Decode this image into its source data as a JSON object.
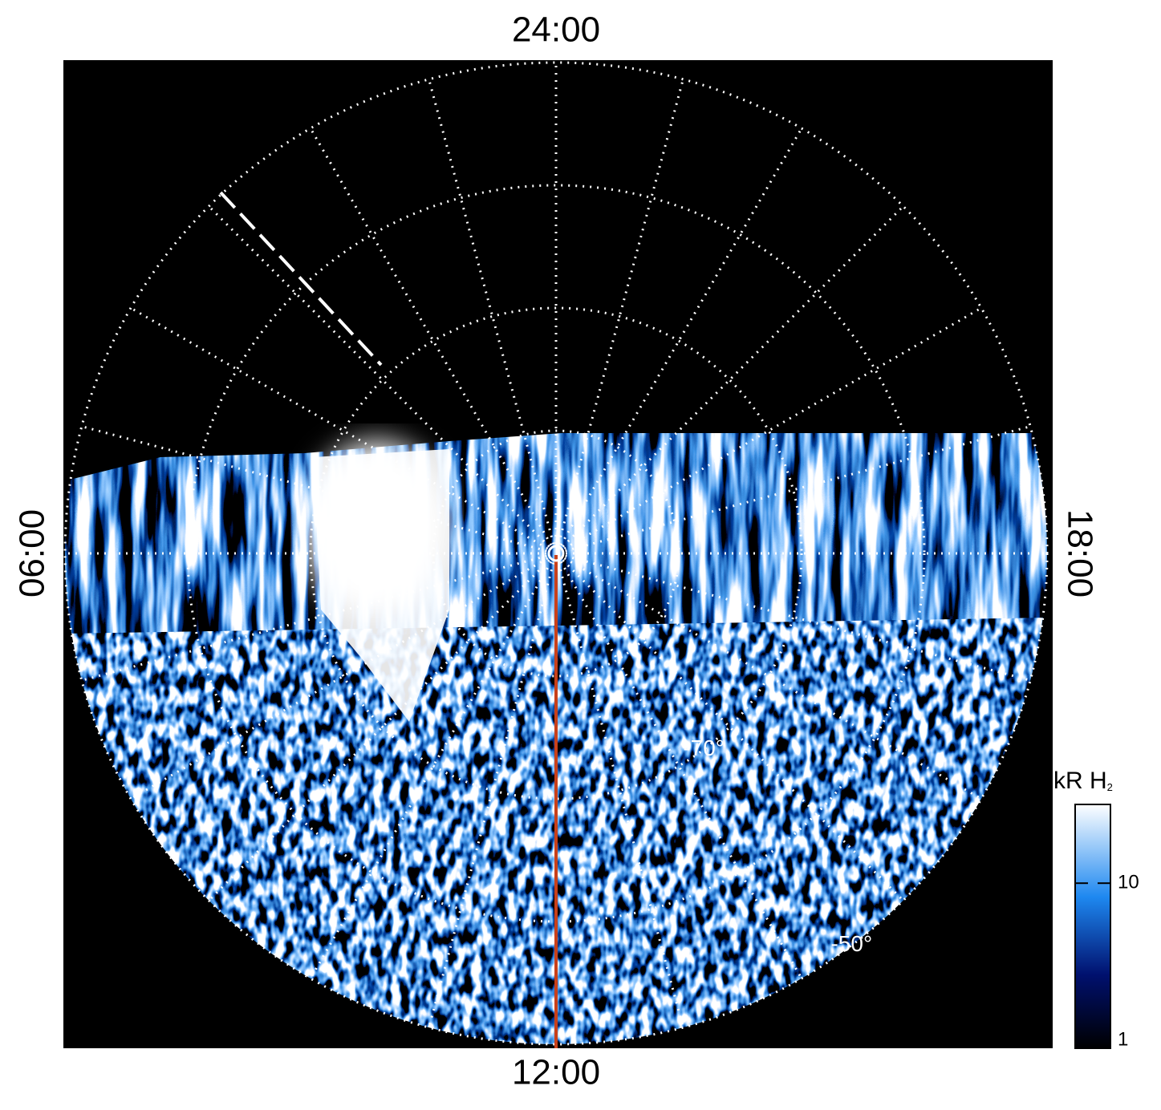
{
  "chart_data": {
    "type": "polar-image",
    "local_time_labels": [
      {
        "value": 24,
        "label": "24:00"
      },
      {
        "value": 6,
        "label": "06:00"
      },
      {
        "value": 12,
        "label": "12:00"
      },
      {
        "value": 18,
        "label": "18:00"
      }
    ],
    "local_time_grid": [
      0,
      1,
      2,
      3,
      4,
      5,
      6,
      7,
      8,
      9,
      10,
      11,
      12,
      13,
      14,
      15,
      16,
      17,
      18,
      19,
      20,
      21,
      22,
      23
    ],
    "rlim": [
      -90,
      -50
    ],
    "lat_rings": [
      -80,
      -70,
      -60,
      -50
    ],
    "lat_labels": [
      {
        "value": -70,
        "label": "-70°"
      },
      {
        "value": -50,
        "label": "-50°"
      }
    ],
    "colorbar": {
      "label": "kR H",
      "label_subscript": "2",
      "clim": [
        1,
        30
      ],
      "ticks": [
        1,
        10
      ],
      "log": true
    }
  }
}
